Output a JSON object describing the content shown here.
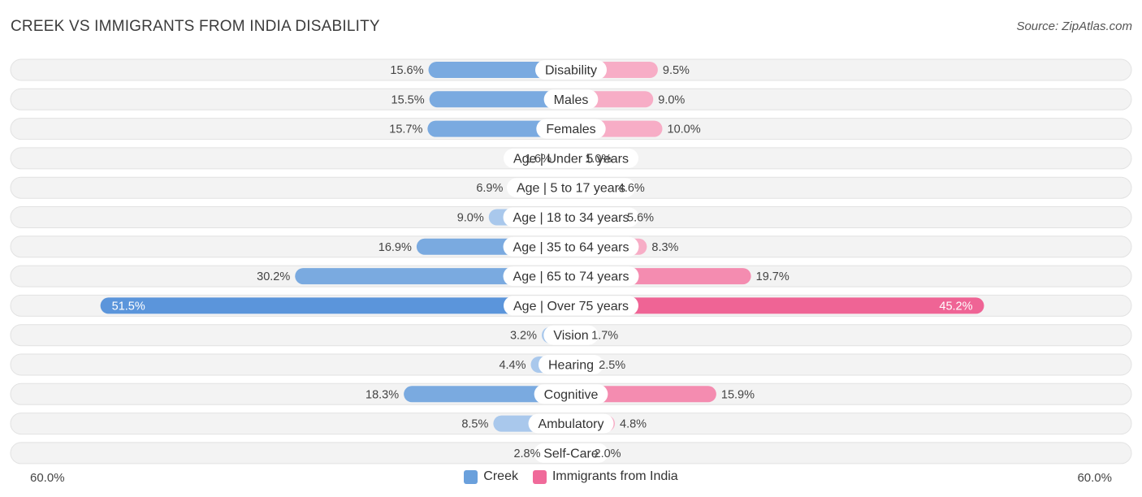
{
  "title": "CREEK VS IMMIGRANTS FROM INDIA DISABILITY",
  "source": "Source: ZipAtlas.com",
  "colors": {
    "creek": "#7aaae0",
    "creek_light": "#a9c8ec",
    "creek_strong": "#5b95db",
    "india": "#f48cb0",
    "india_light": "#f7adc6",
    "india_strong": "#ef6495"
  },
  "chart_data": {
    "type": "bar",
    "orientation": "horizontal-diverging",
    "title": "CREEK VS IMMIGRANTS FROM INDIA DISABILITY",
    "axis_max": 60.0,
    "axis_left_label": "60.0%",
    "axis_right_label": "60.0%",
    "categories": [
      "Disability",
      "Males",
      "Females",
      "Age | Under 5 years",
      "Age | 5 to 17 years",
      "Age | 18 to 34 years",
      "Age | 35 to 64 years",
      "Age | 65 to 74 years",
      "Age | Over 75 years",
      "Vision",
      "Hearing",
      "Cognitive",
      "Ambulatory",
      "Self-Care"
    ],
    "series": [
      {
        "name": "Creek",
        "values": [
          15.6,
          15.5,
          15.7,
          1.6,
          6.9,
          9.0,
          16.9,
          30.2,
          51.5,
          3.2,
          4.4,
          18.3,
          8.5,
          2.8
        ],
        "labels": [
          "15.6%",
          "15.5%",
          "15.7%",
          "1.6%",
          "6.9%",
          "9.0%",
          "16.9%",
          "30.2%",
          "51.5%",
          "3.2%",
          "4.4%",
          "18.3%",
          "8.5%",
          "2.8%"
        ]
      },
      {
        "name": "Immigrants from India",
        "values": [
          9.5,
          9.0,
          10.0,
          1.0,
          4.6,
          5.6,
          8.3,
          19.7,
          45.2,
          1.7,
          2.5,
          15.9,
          4.8,
          2.0
        ],
        "labels": [
          "9.5%",
          "9.0%",
          "10.0%",
          "1.0%",
          "4.6%",
          "5.6%",
          "8.3%",
          "19.7%",
          "45.2%",
          "1.7%",
          "2.5%",
          "15.9%",
          "4.8%",
          "2.0%"
        ]
      }
    ]
  },
  "legend": {
    "creek_label": "Creek",
    "india_label": "Immigrants from India"
  }
}
